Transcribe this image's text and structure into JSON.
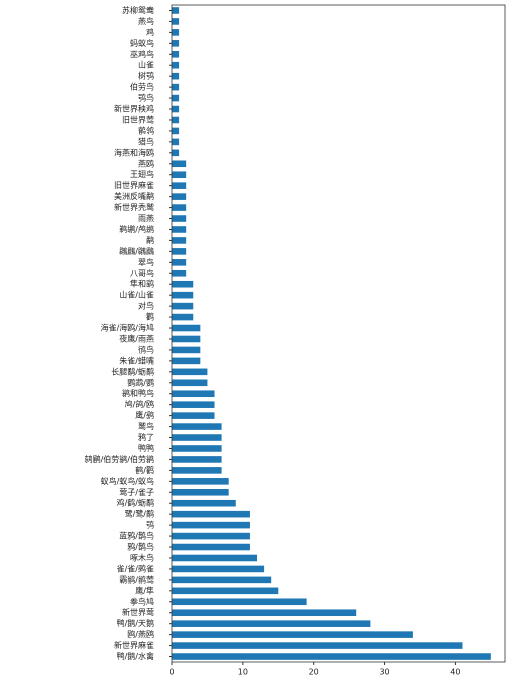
{
  "chart_data": {
    "type": "hbar",
    "color": "#1f77b4",
    "categories": [
      "苏柳鸳鸯",
      "燕鸟",
      "鸡",
      "蚂蚁鸟",
      "巫鸡鸟",
      "山雀",
      "树鸮",
      "伯劳鸟",
      "鸮鸟",
      "新世界秧鸡",
      "旧世界莺",
      "鹡鸰",
      "猎鸟",
      "海燕和海鸥",
      "燕鸥",
      "王翅鸟",
      "旧世界麻雀",
      "美洲反嘴鹬",
      "新世界秃鹫",
      "雨燕",
      "鹈鹕/鸬鹚",
      "鹬",
      "鸊鷉/鸊鷉",
      "翠鸟",
      "八哥鸟",
      "隼和鹞",
      "山雀/山雀",
      "对鸟",
      "鹳",
      "海雀/海鸥/海鸠",
      "夜鹰/雨燕",
      "鸻鸟",
      "朱雀/蜡嘴",
      "长腿鹬/蛎鹬",
      "鹦鹉/鹦",
      "鹟和鸭鸟",
      "鸠/鸽/鸥",
      "鹰/鹞",
      "鹫鸟",
      "鸦了",
      "鸭鸭",
      "鸫鹛/伯劳鹟/伯劳鹟",
      "鹤/鹳",
      "蚁鸟/蚁鸟/蚁鸟",
      "莺子/雀子",
      "鸡/鹤/蛎鹬",
      "鹭/鹭/鹬",
      "鸮",
      "蓝鸦/鹊鸟",
      "鸦/鹊鸟",
      "啄木鸟",
      "雀/雀/鹀雀",
      "霸鹟/鹟莺",
      "鹰/隼",
      "拳鸟鸠",
      "新世界莺",
      "鸭/鹅/天鹅",
      "鸥/燕鸥",
      "新世界麻雀",
      "鸭/鹅/水禽"
    ],
    "values": [
      1,
      1,
      1,
      1,
      1,
      1,
      1,
      1,
      1,
      1,
      1,
      1,
      1,
      1,
      2,
      2,
      2,
      2,
      2,
      2,
      2,
      2,
      2,
      2,
      2,
      3,
      3,
      3,
      3,
      4,
      4,
      4,
      4,
      5,
      5,
      6,
      6,
      6,
      7,
      7,
      7,
      7,
      7,
      8,
      8,
      9,
      11,
      11,
      11,
      11,
      12,
      13,
      14,
      15,
      19,
      26,
      28,
      34,
      41,
      45
    ],
    "xlim": [
      0,
      47
    ],
    "xticks": [
      0,
      10,
      20,
      30,
      40
    ]
  }
}
